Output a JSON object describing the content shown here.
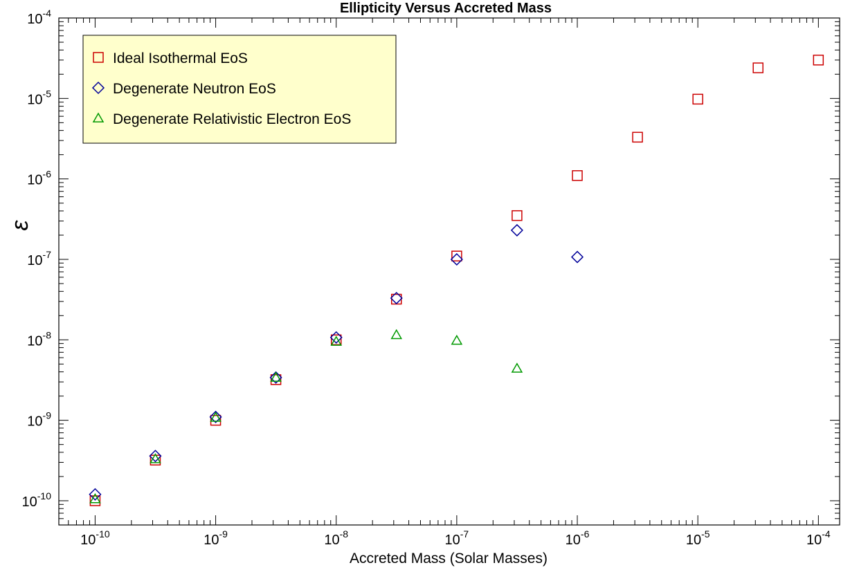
{
  "chart_data": {
    "type": "scatter",
    "title": "Ellipticity Versus Accreted Mass",
    "xlabel": "Accreted Mass (Solar Masses)",
    "ylabel": "ε",
    "x_scale": "log",
    "y_scale": "log",
    "xlim": [
      5e-11,
      0.00015
    ],
    "ylim": [
      5e-11,
      0.0001
    ],
    "grid": false,
    "legend_position": "top-left",
    "x_ticks": [
      {
        "base": "10",
        "exp": "-10",
        "value": 1e-10
      },
      {
        "base": "10",
        "exp": "-9",
        "value": 1e-09
      },
      {
        "base": "10",
        "exp": "-8",
        "value": 1e-08
      },
      {
        "base": "10",
        "exp": "-7",
        "value": 1e-07
      },
      {
        "base": "10",
        "exp": "-6",
        "value": 1e-06
      },
      {
        "base": "10",
        "exp": "-5",
        "value": 1e-05
      },
      {
        "base": "10",
        "exp": "-4",
        "value": 0.0001
      }
    ],
    "y_ticks": [
      {
        "base": "10",
        "exp": "-10",
        "value": 1e-10
      },
      {
        "base": "10",
        "exp": "-9",
        "value": 1e-09
      },
      {
        "base": "10",
        "exp": "-8",
        "value": 1e-08
      },
      {
        "base": "10",
        "exp": "-7",
        "value": 1e-07
      },
      {
        "base": "10",
        "exp": "-6",
        "value": 1e-06
      },
      {
        "base": "10",
        "exp": "-5",
        "value": 1e-05
      },
      {
        "base": "10",
        "exp": "-4",
        "value": 0.0001
      }
    ],
    "series": [
      {
        "name": "Ideal Isothermal EoS",
        "marker": "square",
        "color": "#cc0000",
        "points": [
          {
            "x": 1e-10,
            "y": 1e-10
          },
          {
            "x": 3.16e-10,
            "y": 3.2e-10
          },
          {
            "x": 1e-09,
            "y": 1e-09
          },
          {
            "x": 3.16e-09,
            "y": 3.2e-09
          },
          {
            "x": 1e-08,
            "y": 1e-08
          },
          {
            "x": 3.16e-08,
            "y": 3.2e-08
          },
          {
            "x": 1e-07,
            "y": 1.1e-07
          },
          {
            "x": 3.16e-07,
            "y": 3.5e-07
          },
          {
            "x": 1e-06,
            "y": 1.1e-06
          },
          {
            "x": 3.16e-06,
            "y": 3.3e-06
          },
          {
            "x": 1e-05,
            "y": 9.8e-06
          },
          {
            "x": 3.16e-05,
            "y": 2.4e-05
          },
          {
            "x": 0.0001,
            "y": 3e-05
          }
        ]
      },
      {
        "name": "Degenerate Neutron EoS",
        "marker": "diamond",
        "color": "#000099",
        "points": [
          {
            "x": 1e-10,
            "y": 1.2e-10
          },
          {
            "x": 3.16e-10,
            "y": 3.6e-10
          },
          {
            "x": 1e-09,
            "y": 1.1e-09
          },
          {
            "x": 3.16e-09,
            "y": 3.4e-09
          },
          {
            "x": 1e-08,
            "y": 1.07e-08
          },
          {
            "x": 3.16e-08,
            "y": 3.3e-08
          },
          {
            "x": 1e-07,
            "y": 1e-07
          },
          {
            "x": 3.16e-07,
            "y": 2.3e-07
          },
          {
            "x": 1e-06,
            "y": 1.07e-07
          }
        ]
      },
      {
        "name": "Degenerate Relativistic Electron EoS",
        "marker": "triangle",
        "color": "#009900",
        "points": [
          {
            "x": 1e-10,
            "y": 1.05e-10
          },
          {
            "x": 3.16e-10,
            "y": 3.3e-10
          },
          {
            "x": 1e-09,
            "y": 1.08e-09
          },
          {
            "x": 3.16e-09,
            "y": 3.4e-09
          },
          {
            "x": 1e-08,
            "y": 9.5e-09
          },
          {
            "x": 3.16e-08,
            "y": 1.15e-08
          },
          {
            "x": 1e-07,
            "y": 9.8e-09
          },
          {
            "x": 3.16e-07,
            "y": 4.4e-09
          }
        ]
      }
    ],
    "legend_style": {
      "background": "#ffffcc",
      "border": "#000000"
    }
  }
}
